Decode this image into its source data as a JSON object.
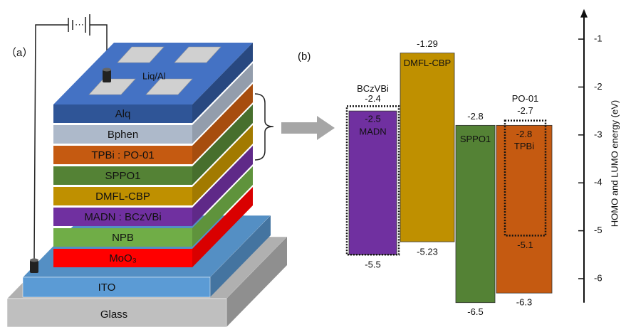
{
  "device": {
    "label": "（a）",
    "cathode": "Liq/Al",
    "layers": [
      {
        "name": "Alq",
        "color": "#2f5597"
      },
      {
        "name": "Bphen",
        "color": "#adb9ca"
      },
      {
        "name": "TPBi : PO-01",
        "color": "#c55a11"
      },
      {
        "name": "SPPO1",
        "color": "#548235"
      },
      {
        "name": "DMFL-CBP",
        "color": "#bf9000"
      },
      {
        "name": "MADN : BCzVBi",
        "color": "#7030a0"
      },
      {
        "name": "NPB",
        "color": "#70ad47"
      },
      {
        "name": "MoO₃",
        "color": "#ff0000"
      }
    ],
    "anode": {
      "name": "ITO",
      "color": "#5b9bd5"
    },
    "substrate": {
      "name": "Glass",
      "color": "#bfbfbf"
    }
  },
  "energy_diagram": {
    "label": "(b)",
    "axis_label": "HOMO and LUMO energy (eV)",
    "ylim": [
      -0.4,
      -6.5
    ],
    "yticks": [
      -1,
      -2,
      -3,
      -4,
      -5,
      -6
    ],
    "levels": [
      {
        "name": "MADN",
        "lumo": -2.5,
        "homo": -5.5,
        "color": "#7030a0"
      },
      {
        "name": "BCzVBi",
        "lumo": -2.4,
        "homo": -5.5,
        "style": "dotted"
      },
      {
        "name": "DMFL-CBP",
        "lumo": -1.29,
        "homo": -5.23,
        "color": "#bf9000"
      },
      {
        "name": "SPPO1",
        "lumo": -2.8,
        "homo": -6.5,
        "color": "#548235"
      },
      {
        "name": "TPBi",
        "lumo": -2.8,
        "homo": -6.3,
        "color": "#c55a11"
      },
      {
        "name": "PO-01",
        "lumo": -2.7,
        "homo": -5.1,
        "style": "dotted"
      }
    ]
  }
}
